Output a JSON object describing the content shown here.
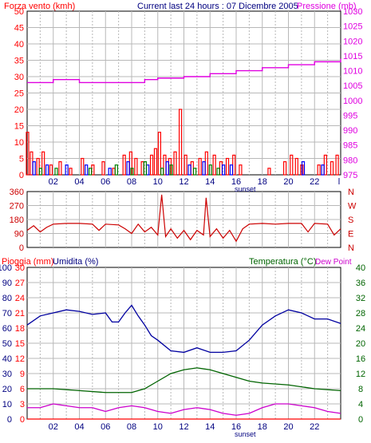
{
  "header": {
    "left_title": "Forza vento (kmh)",
    "center_title": "Current last 24 hours : 07 Dicembre 2005",
    "right_title": "Pressione (mb)"
  },
  "labels": {
    "sunset": "sunset",
    "rain": "Pioggia (mm)",
    "humidity": "Umidita (%)",
    "temperature": "Temperatura (°C)",
    "dewpoint": "Dew Point"
  },
  "colors": {
    "wind": "#ff0000",
    "pressure": "#e000e0",
    "direction": "#cc0000",
    "humidity": "#0000a0",
    "temperature": "#006400",
    "dewpoint": "#cc00cc",
    "rain": "#ff0000",
    "grid": "#b8b8b8",
    "frame": "#000000"
  },
  "chart_data": [
    {
      "type": "bar",
      "name": "wind",
      "x_ticks": [
        "02",
        "04",
        "06",
        "08",
        "10",
        "12",
        "14",
        "16",
        "18",
        "20",
        "22"
      ],
      "y_left_ticks": [
        "0",
        "5",
        "10",
        "15",
        "20",
        "25",
        "30",
        "35",
        "40",
        "45",
        "50"
      ],
      "y_right_ticks": [
        "975",
        "980",
        "985",
        "990",
        "995",
        "1000",
        "1005",
        "1010",
        "1015",
        "1020",
        "1025",
        "1030"
      ],
      "ylim_left": [
        0,
        50
      ],
      "ylim_right": [
        975,
        1030
      ],
      "series": [
        {
          "name": "Forza vento (kmh)",
          "color": "#ff0000",
          "points": [
            [
              0.0,
              13
            ],
            [
              0.3,
              7
            ],
            [
              0.8,
              5
            ],
            [
              1.2,
              7
            ],
            [
              1.8,
              3
            ],
            [
              2.5,
              4
            ],
            [
              3.3,
              2
            ],
            [
              4.2,
              5
            ],
            [
              5.0,
              3
            ],
            [
              5.8,
              4
            ],
            [
              6.6,
              2
            ],
            [
              7.4,
              6
            ],
            [
              7.9,
              7
            ],
            [
              8.3,
              5
            ],
            [
              8.8,
              4
            ],
            [
              9.5,
              6
            ],
            [
              9.8,
              8
            ],
            [
              10.1,
              13
            ],
            [
              10.5,
              6
            ],
            [
              10.9,
              5
            ],
            [
              11.3,
              7
            ],
            [
              11.7,
              20
            ],
            [
              12.1,
              6
            ],
            [
              12.6,
              4
            ],
            [
              13.2,
              5
            ],
            [
              13.7,
              7
            ],
            [
              14.3,
              6
            ],
            [
              14.8,
              4
            ],
            [
              15.3,
              5
            ],
            [
              15.8,
              6
            ],
            [
              16.3,
              3
            ],
            [
              18.5,
              2
            ],
            [
              19.7,
              4
            ],
            [
              20.2,
              6
            ],
            [
              20.6,
              5
            ],
            [
              21.0,
              3
            ],
            [
              22.3,
              3
            ],
            [
              22.8,
              6
            ],
            [
              23.3,
              4
            ],
            [
              23.7,
              6
            ]
          ]
        },
        {
          "name": "wind-gust-blue",
          "color": "#0000ff",
          "points": [
            [
              0.5,
              4
            ],
            [
              1.5,
              3
            ],
            [
              3.0,
              3
            ],
            [
              4.5,
              3
            ],
            [
              6.3,
              2
            ],
            [
              7.7,
              4
            ],
            [
              9.2,
              3
            ],
            [
              10.7,
              4
            ],
            [
              12.4,
              3
            ],
            [
              13.5,
              4
            ],
            [
              15.0,
              3
            ],
            [
              15.6,
              3
            ],
            [
              21.1,
              4
            ],
            [
              22.6,
              3
            ]
          ]
        },
        {
          "name": "wind-green",
          "color": "#008000",
          "points": [
            [
              1.0,
              2
            ],
            [
              2.2,
              2
            ],
            [
              4.8,
              2
            ],
            [
              6.8,
              3
            ],
            [
              8.0,
              2
            ],
            [
              9.0,
              4
            ],
            [
              10.3,
              2
            ],
            [
              11.0,
              3
            ],
            [
              12.8,
              2
            ],
            [
              14.0,
              3
            ],
            [
              14.6,
              2
            ]
          ]
        },
        {
          "name": "Pressione (mb)",
          "color": "#e000e0",
          "axis": "right",
          "points": [
            [
              0,
              1006
            ],
            [
              2,
              1007
            ],
            [
              4,
              1006
            ],
            [
              6,
              1006
            ],
            [
              8,
              1006
            ],
            [
              9,
              1007
            ],
            [
              10,
              1007.5
            ],
            [
              12,
              1008
            ],
            [
              14,
              1009
            ],
            [
              16,
              1010
            ],
            [
              18,
              1011
            ],
            [
              20,
              1012
            ],
            [
              22,
              1013
            ],
            [
              24,
              1014
            ]
          ]
        }
      ]
    },
    {
      "type": "line",
      "name": "wind-direction",
      "y_left_ticks": [
        "0",
        "90",
        "180",
        "270",
        "360"
      ],
      "y_right_ticks": [
        "N",
        "E",
        "S",
        "W",
        "N"
      ],
      "ylim": [
        0,
        360
      ],
      "series": [
        {
          "name": "direction",
          "color": "#cc0000",
          "points": [
            [
              0,
              110
            ],
            [
              0.5,
              140
            ],
            [
              1.0,
              100
            ],
            [
              1.5,
              130
            ],
            [
              2,
              150
            ],
            [
              3,
              155
            ],
            [
              4,
              155
            ],
            [
              5,
              150
            ],
            [
              5.5,
              110
            ],
            [
              6,
              150
            ],
            [
              7,
              145
            ],
            [
              7.5,
              120
            ],
            [
              8,
              90
            ],
            [
              8.5,
              150
            ],
            [
              9,
              100
            ],
            [
              9.5,
              130
            ],
            [
              10,
              80
            ],
            [
              10.3,
              340
            ],
            [
              10.6,
              70
            ],
            [
              11,
              120
            ],
            [
              11.5,
              60
            ],
            [
              12,
              110
            ],
            [
              12.5,
              50
            ],
            [
              13,
              110
            ],
            [
              13.5,
              80
            ],
            [
              13.7,
              320
            ],
            [
              14,
              70
            ],
            [
              14.5,
              120
            ],
            [
              15,
              60
            ],
            [
              15.5,
              110
            ],
            [
              16,
              40
            ],
            [
              16.5,
              120
            ],
            [
              17,
              150
            ],
            [
              18,
              155
            ],
            [
              19,
              150
            ],
            [
              20,
              155
            ],
            [
              21,
              155
            ],
            [
              21.5,
              100
            ],
            [
              22,
              155
            ],
            [
              23,
              150
            ],
            [
              23.5,
              80
            ],
            [
              24,
              120
            ]
          ]
        }
      ]
    },
    {
      "type": "line",
      "name": "climate",
      "x_ticks": [
        "02",
        "04",
        "06",
        "08",
        "10",
        "12",
        "14",
        "16",
        "18",
        "20",
        "22"
      ],
      "y_rain_ticks": [
        "0",
        "3",
        "6",
        "9",
        "12",
        "15",
        "18",
        "21",
        "24",
        "27",
        "30"
      ],
      "y_humidity_ticks": [
        "0",
        "10",
        "20",
        "30",
        "40",
        "50",
        "60",
        "70",
        "80",
        "90",
        "100"
      ],
      "y_temp_ticks": [
        "0",
        "4",
        "8",
        "12",
        "16",
        "20",
        "24",
        "28",
        "32",
        "36",
        "40"
      ],
      "ylim_humidity": [
        0,
        100
      ],
      "ylim_temp": [
        0,
        40
      ],
      "series": [
        {
          "name": "Umidita (%)",
          "color": "#0000a0",
          "axis": "humidity",
          "points": [
            [
              0,
              62
            ],
            [
              1,
              68
            ],
            [
              2,
              70
            ],
            [
              3,
              72
            ],
            [
              4,
              71
            ],
            [
              5,
              69
            ],
            [
              6,
              70
            ],
            [
              6.5,
              64
            ],
            [
              7,
              64
            ],
            [
              7.5,
              70
            ],
            [
              8,
              75
            ],
            [
              8.5,
              68
            ],
            [
              9,
              62
            ],
            [
              9.5,
              55
            ],
            [
              10,
              52
            ],
            [
              11,
              45
            ],
            [
              12,
              44
            ],
            [
              13,
              47
            ],
            [
              14,
              44
            ],
            [
              15,
              44
            ],
            [
              16,
              45
            ],
            [
              17,
              52
            ],
            [
              18,
              62
            ],
            [
              19,
              68
            ],
            [
              20,
              72
            ],
            [
              21,
              70
            ],
            [
              22,
              66
            ],
            [
              23,
              66
            ],
            [
              24,
              63
            ]
          ]
        },
        {
          "name": "Temperatura (°C)",
          "color": "#006400",
          "axis": "temp",
          "points": [
            [
              0,
              8
            ],
            [
              2,
              8
            ],
            [
              4,
              7.5
            ],
            [
              6,
              7
            ],
            [
              8,
              7
            ],
            [
              9,
              8
            ],
            [
              10,
              10
            ],
            [
              11,
              12
            ],
            [
              12,
              13
            ],
            [
              13,
              13.5
            ],
            [
              14,
              13
            ],
            [
              15,
              12
            ],
            [
              16,
              11
            ],
            [
              17,
              10
            ],
            [
              18,
              9.5
            ],
            [
              20,
              9
            ],
            [
              22,
              8
            ],
            [
              24,
              7.5
            ]
          ]
        },
        {
          "name": "Dew Point",
          "color": "#cc00cc",
          "axis": "temp",
          "points": [
            [
              0,
              3
            ],
            [
              1,
              3
            ],
            [
              2,
              4
            ],
            [
              3,
              3.5
            ],
            [
              4,
              3
            ],
            [
              5,
              3
            ],
            [
              6,
              2
            ],
            [
              7,
              3
            ],
            [
              8,
              3.5
            ],
            [
              9,
              3
            ],
            [
              10,
              2
            ],
            [
              11,
              1.5
            ],
            [
              12,
              2.5
            ],
            [
              13,
              3
            ],
            [
              14,
              2.5
            ],
            [
              15,
              1.5
            ],
            [
              16,
              1
            ],
            [
              17,
              1.5
            ],
            [
              18,
              3
            ],
            [
              19,
              4
            ],
            [
              20,
              4
            ],
            [
              21,
              3.5
            ],
            [
              22,
              3
            ],
            [
              23,
              2
            ],
            [
              24,
              1.5
            ]
          ]
        },
        {
          "name": "Pioggia (mm)",
          "color": "#ff0000",
          "axis": "rain",
          "points": [
            [
              0,
              0
            ],
            [
              24,
              0
            ]
          ]
        }
      ]
    }
  ]
}
